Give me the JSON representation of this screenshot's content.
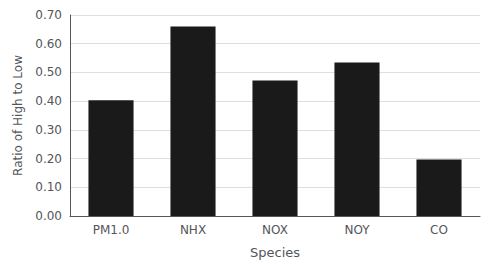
{
  "chart_data": {
    "type": "bar",
    "categories": [
      "PM1.0",
      "NHX",
      "NOX",
      "NOY",
      "CO"
    ],
    "values": [
      0.403,
      0.66,
      0.472,
      0.535,
      0.197
    ],
    "color": "#1a1a1a",
    "xlabel": "Species",
    "ylabel": "Ratio of High to Low",
    "ylim": [
      0.0,
      0.7
    ],
    "yticks": [
      {
        "value": 0.0,
        "label": "0.00"
      },
      {
        "value": 0.1,
        "label": "0.10"
      },
      {
        "value": 0.2,
        "label": "0.20"
      },
      {
        "value": 0.3,
        "label": "0.30"
      },
      {
        "value": 0.4,
        "label": "0.40"
      },
      {
        "value": 0.5,
        "label": "0.50"
      },
      {
        "value": 0.6,
        "label": "0.60"
      },
      {
        "value": 0.7,
        "label": "0.70"
      }
    ],
    "grid": true
  }
}
